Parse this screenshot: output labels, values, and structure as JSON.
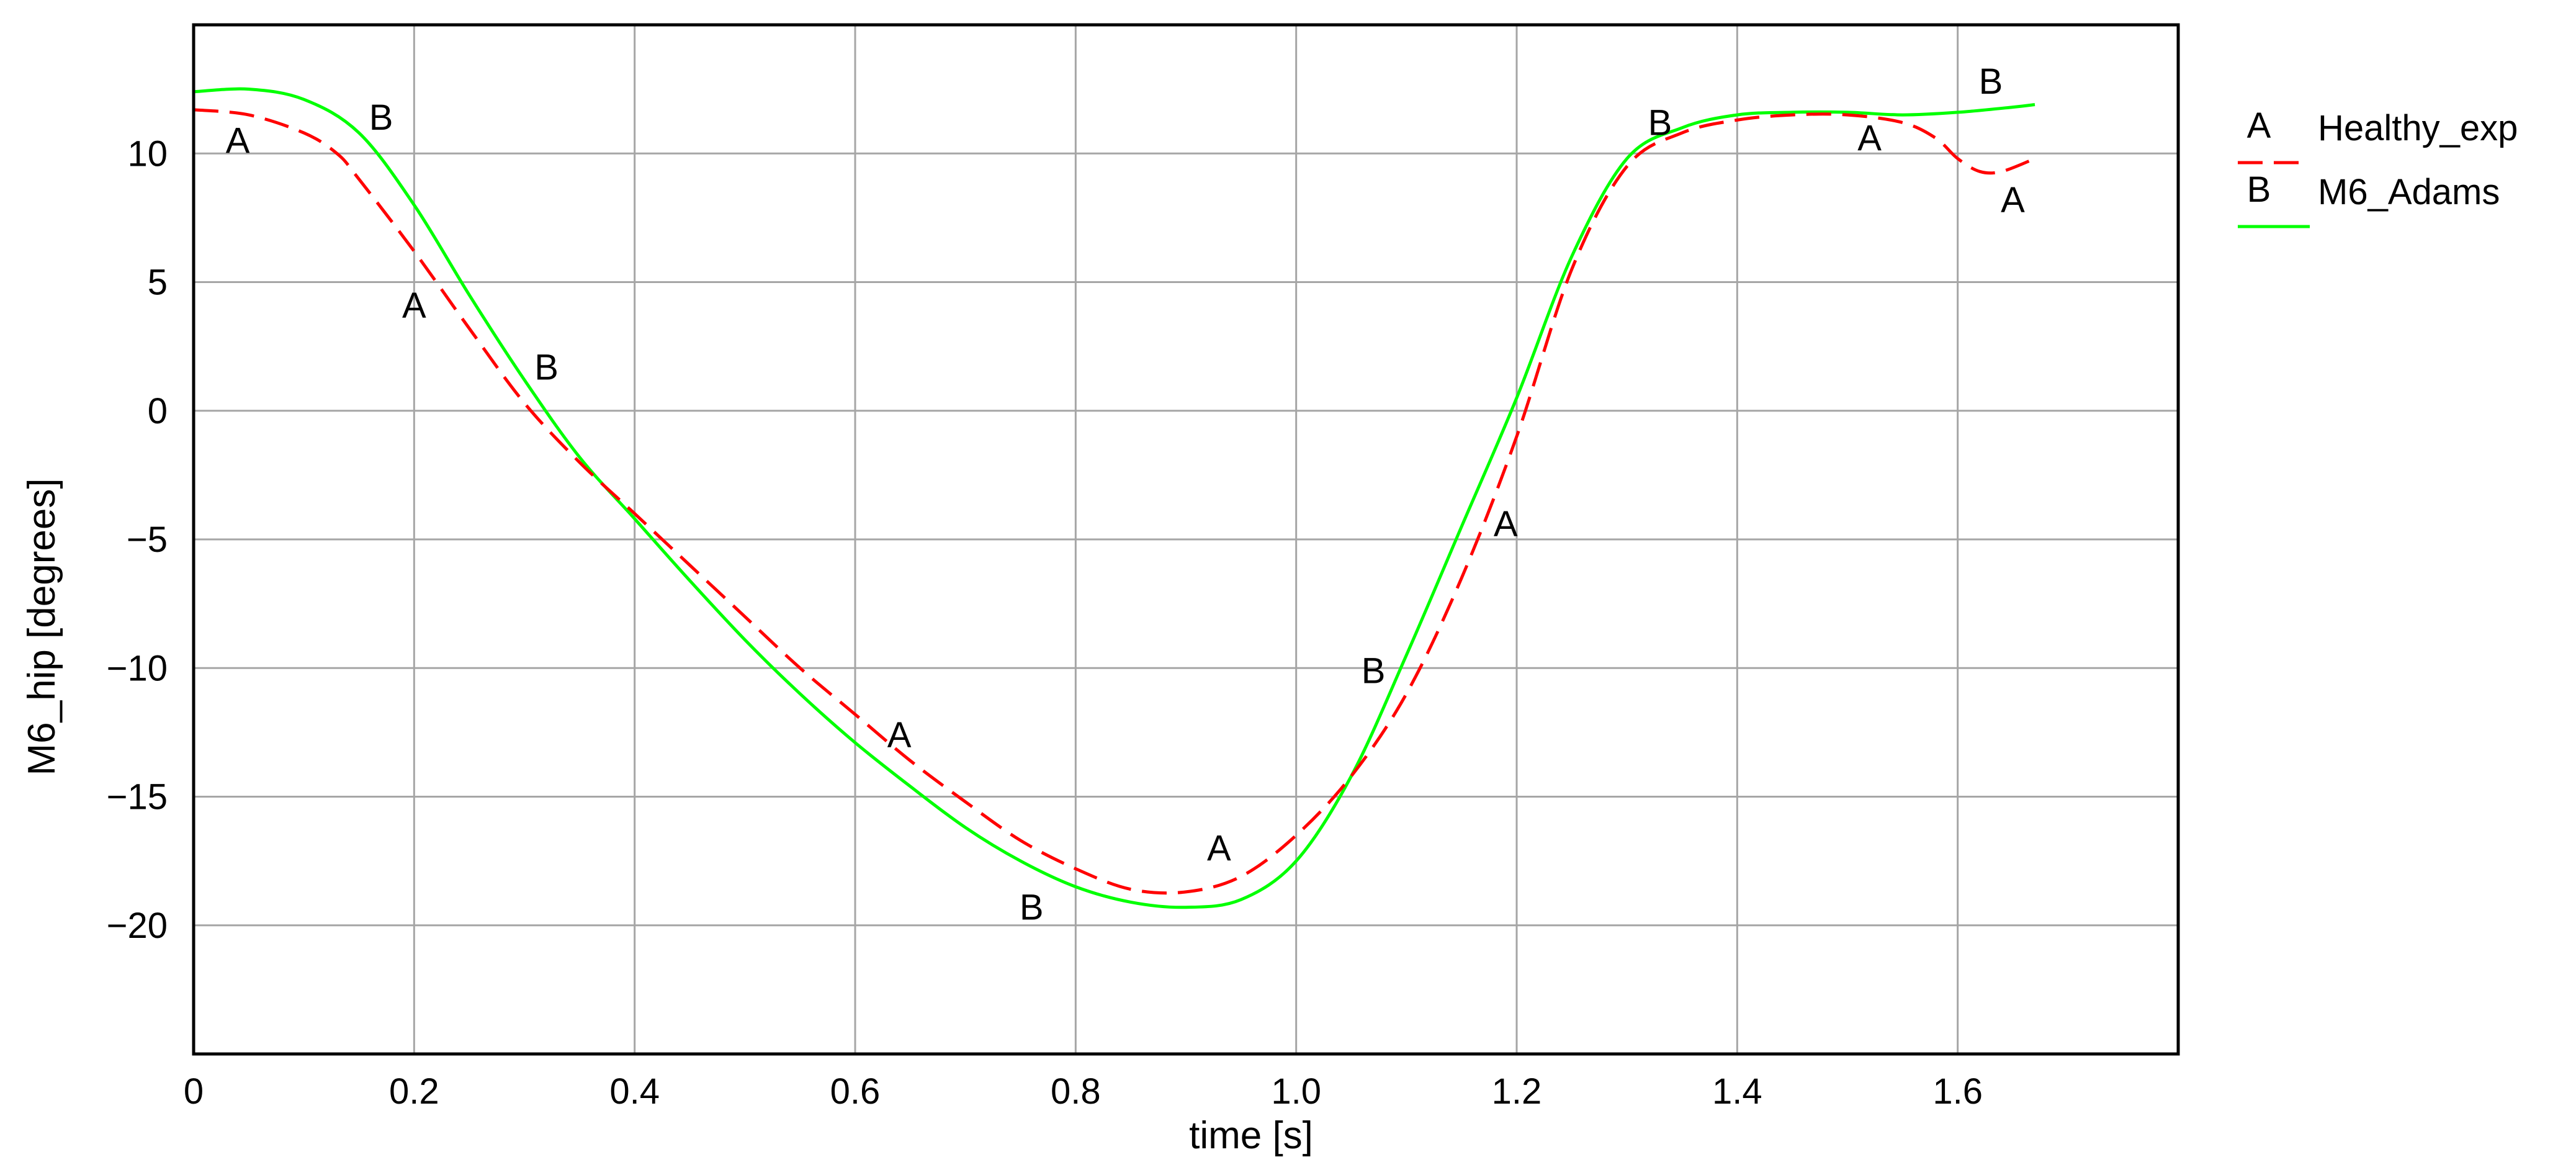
{
  "chart_data": {
    "type": "line",
    "title": "",
    "xlabel": "time [s]",
    "ylabel": "M6_hip [degrees]",
    "xlim": [
      0,
      1.8
    ],
    "ylim": [
      -25,
      15
    ],
    "grid": true,
    "legend_position": "right, outside plot",
    "x_ticks": [
      0,
      0.2,
      0.4,
      0.6,
      0.8,
      1.0,
      1.2,
      1.4,
      1.6
    ],
    "x_tick_labels": [
      "0",
      "0.2",
      "0.4",
      "0.6",
      "0.8",
      "1.0",
      "1.2",
      "1.4",
      "1.6"
    ],
    "y_ticks": [
      10,
      5,
      0,
      -5,
      -10,
      -15,
      -20
    ],
    "y_tick_labels": [
      "10",
      "5",
      "0",
      "−5",
      "−10",
      "−15",
      "−20"
    ],
    "series": [
      {
        "name": "Healthy_exp",
        "marker": "A",
        "color": "#ff0000",
        "line_style": "dashed",
        "x": [
          0,
          0.05,
          0.1,
          0.13,
          0.15,
          0.2,
          0.25,
          0.3,
          0.35,
          0.4,
          0.45,
          0.5,
          0.55,
          0.6,
          0.65,
          0.7,
          0.75,
          0.8,
          0.85,
          0.9,
          0.95,
          1.0,
          1.05,
          1.1,
          1.15,
          1.2,
          1.25,
          1.3,
          1.35,
          1.4,
          1.45,
          1.5,
          1.55,
          1.58,
          1.6,
          1.62,
          1.64,
          1.67
        ],
        "y": [
          11.7,
          11.5,
          10.8,
          10.0,
          9.0,
          6.2,
          3.2,
          0.3,
          -2.0,
          -4.0,
          -6.0,
          -8.0,
          -10.0,
          -11.8,
          -13.6,
          -15.2,
          -16.7,
          -17.8,
          -18.6,
          -18.7,
          -18.1,
          -16.5,
          -14.2,
          -11.0,
          -6.5,
          -1.0,
          5.5,
          9.5,
          10.8,
          11.3,
          11.5,
          11.5,
          11.2,
          10.6,
          9.8,
          9.3,
          9.3,
          9.8
        ]
      },
      {
        "name": "M6_Adams",
        "marker": "B",
        "color": "#00ff00",
        "line_style": "solid",
        "x": [
          0,
          0.05,
          0.1,
          0.15,
          0.2,
          0.25,
          0.3,
          0.35,
          0.4,
          0.45,
          0.5,
          0.55,
          0.6,
          0.65,
          0.7,
          0.75,
          0.8,
          0.85,
          0.9,
          0.95,
          1.0,
          1.05,
          1.1,
          1.15,
          1.2,
          1.25,
          1.3,
          1.35,
          1.4,
          1.45,
          1.5,
          1.55,
          1.6,
          1.65,
          1.67
        ],
        "y": [
          12.4,
          12.5,
          12.1,
          10.8,
          8.0,
          4.5,
          1.2,
          -1.8,
          -4.2,
          -6.6,
          -8.9,
          -11.0,
          -12.9,
          -14.6,
          -16.2,
          -17.5,
          -18.5,
          -19.1,
          -19.3,
          -19.0,
          -17.5,
          -14.2,
          -9.5,
          -4.5,
          0.5,
          6.0,
          9.8,
          11.0,
          11.5,
          11.6,
          11.6,
          11.5,
          11.6,
          11.8,
          11.9
        ]
      }
    ],
    "point_labels": [
      {
        "text": "A",
        "series": "Healthy_exp",
        "x": 0.04,
        "y": 10.5
      },
      {
        "text": "A",
        "series": "Healthy_exp",
        "x": 0.2,
        "y": 4.1
      },
      {
        "text": "A",
        "series": "Healthy_exp",
        "x": 0.64,
        "y": -12.6
      },
      {
        "text": "A",
        "series": "Healthy_exp",
        "x": 0.93,
        "y": -17.0
      },
      {
        "text": "A",
        "series": "Healthy_exp",
        "x": 1.19,
        "y": -4.4
      },
      {
        "text": "A",
        "series": "Healthy_exp",
        "x": 1.52,
        "y": 10.6
      },
      {
        "text": "A",
        "series": "Healthy_exp",
        "x": 1.65,
        "y": 8.2
      },
      {
        "text": "B",
        "series": "M6_Adams",
        "x": 0.17,
        "y": 11.4
      },
      {
        "text": "B",
        "series": "M6_Adams",
        "x": 0.32,
        "y": 1.7
      },
      {
        "text": "B",
        "series": "M6_Adams",
        "x": 0.76,
        "y": -19.3
      },
      {
        "text": "B",
        "series": "M6_Adams",
        "x": 1.07,
        "y": -10.1
      },
      {
        "text": "B",
        "series": "M6_Adams",
        "x": 1.33,
        "y": 11.2
      },
      {
        "text": "B",
        "series": "M6_Adams",
        "x": 1.63,
        "y": 12.8
      }
    ]
  }
}
